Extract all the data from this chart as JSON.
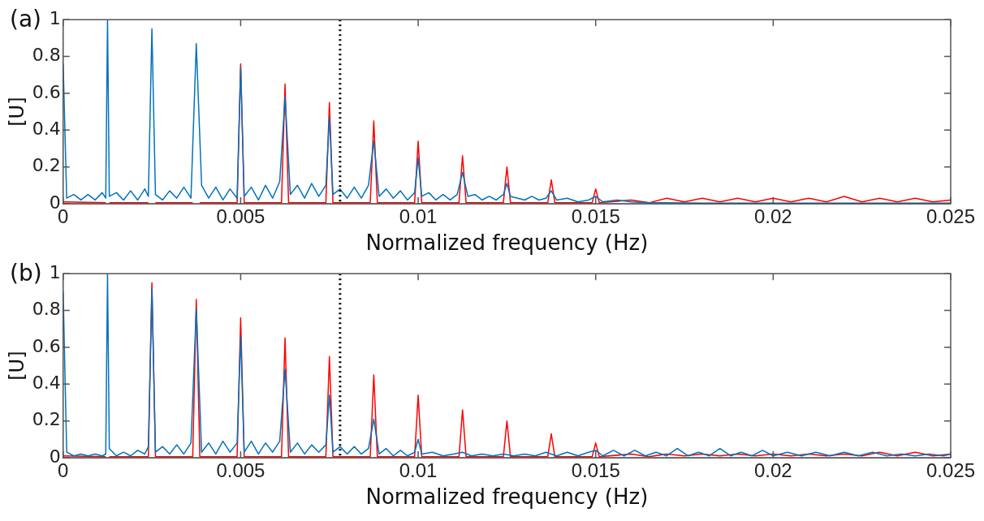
{
  "chart_data": [
    {
      "type": "line",
      "annotations": [
        "(a)"
      ],
      "xlabel": "Normalized frequency (Hz)",
      "ylabel": "[U]",
      "xlim": [
        0,
        0.025
      ],
      "xticks": [
        0,
        0.005,
        0.01,
        0.015,
        0.02,
        0.025
      ],
      "ylim": [
        0,
        1
      ],
      "yticks": [
        0,
        0.2,
        0.4,
        0.6,
        0.8,
        1
      ],
      "grid": false,
      "ref_lines": [
        {
          "axis": "x",
          "value": 0.0078,
          "color": "#000000",
          "line_style": "dotted"
        }
      ],
      "series": [
        {
          "color": "#ff0000",
          "x": [
            0,
            0.0012,
            0.00125,
            0.0013,
            0.0024,
            0.0025,
            0.0026,
            0.00365,
            0.00375,
            0.00385,
            0.0049,
            0.005,
            0.0051,
            0.00615,
            0.00625,
            0.00635,
            0.0074,
            0.0075,
            0.0076,
            0.00865,
            0.00875,
            0.00885,
            0.0099,
            0.01,
            0.0101,
            0.01115,
            0.01125,
            0.01135,
            0.0124,
            0.0125,
            0.0126,
            0.01365,
            0.01375,
            0.01385,
            0.0149,
            0.015,
            0.0151,
            0.016,
            0.0165,
            0.017,
            0.0175,
            0.018,
            0.0185,
            0.019,
            0.0195,
            0.02,
            0.0205,
            0.021,
            0.0215,
            0.022,
            0.0225,
            0.023,
            0.0235,
            0.024,
            0.0245,
            0.025
          ],
          "values": [
            0.01,
            0.005,
            null,
            0.005,
            0.005,
            null,
            0.005,
            0.005,
            null,
            0.005,
            0.005,
            0.76,
            0.005,
            0.005,
            0.65,
            0.005,
            0.005,
            0.55,
            0.005,
            0.005,
            0.45,
            0.005,
            0.005,
            0.34,
            0.005,
            0.005,
            0.26,
            0.005,
            0.005,
            0.2,
            0.005,
            0.005,
            0.13,
            0.005,
            0.005,
            0.08,
            0.005,
            0.02,
            0.005,
            0.03,
            0.01,
            0.03,
            0.01,
            0.03,
            0.01,
            0.03,
            0.01,
            0.03,
            0.01,
            0.04,
            0.01,
            0.03,
            0.01,
            0.03,
            0.01,
            0.02
          ]
        },
        {
          "color": "#0072bd",
          "x": [
            0,
            0.0001,
            0.0003,
            0.0005,
            0.0007,
            0.0009,
            0.0011,
            0.0012,
            0.00125,
            0.0013,
            0.0015,
            0.0017,
            0.0019,
            0.0021,
            0.0023,
            0.0024,
            0.0025,
            0.0026,
            0.0028,
            0.003,
            0.0032,
            0.0034,
            0.0036,
            0.00375,
            0.0039,
            0.0041,
            0.0043,
            0.0045,
            0.0047,
            0.0049,
            0.005,
            0.0051,
            0.0053,
            0.0055,
            0.0057,
            0.0059,
            0.0061,
            0.00625,
            0.0064,
            0.0066,
            0.0068,
            0.007,
            0.0072,
            0.0074,
            0.0075,
            0.0076,
            0.0078,
            0.008,
            0.0082,
            0.0084,
            0.0086,
            0.00875,
            0.0089,
            0.0091,
            0.0093,
            0.0095,
            0.0097,
            0.0099,
            0.01,
            0.0101,
            0.0103,
            0.0105,
            0.0107,
            0.0109,
            0.0111,
            0.01125,
            0.0114,
            0.0116,
            0.0118,
            0.012,
            0.0122,
            0.0124,
            0.0125,
            0.0126,
            0.0128,
            0.013,
            0.0132,
            0.0134,
            0.0136,
            0.01375,
            0.0139,
            0.0142,
            0.0145,
            0.0148,
            0.015,
            0.0152,
            0.0156,
            0.016,
            0.0165,
            0.017,
            0.018,
            0.019,
            0.02,
            0.021,
            0.022,
            0.023,
            0.024,
            0.025
          ],
          "values": [
            0.76,
            0.03,
            0.05,
            0.02,
            0.05,
            0.02,
            0.06,
            0.03,
            1,
            0.04,
            0.06,
            0.02,
            0.07,
            0.02,
            0.08,
            0.04,
            0.95,
            0.05,
            0.02,
            0.07,
            0.03,
            0.09,
            0.03,
            0.87,
            0.1,
            0.03,
            0.09,
            0.02,
            0.08,
            0.03,
            0.74,
            0.04,
            0.09,
            0.02,
            0.1,
            0.03,
            0.12,
            0.58,
            0.05,
            0.1,
            0.03,
            0.11,
            0.04,
            0.1,
            0.47,
            0.05,
            0.08,
            0.03,
            0.09,
            0.03,
            0.1,
            0.34,
            0.04,
            0.08,
            0.03,
            0.07,
            0.02,
            0.06,
            0.25,
            0.04,
            0.06,
            0.02,
            0.05,
            0.02,
            0.05,
            0.17,
            0.04,
            0.05,
            0.02,
            0.04,
            0.02,
            0.05,
            0.11,
            0.04,
            0.03,
            0.02,
            0.04,
            0.02,
            0.03,
            0.07,
            0.02,
            0.03,
            0.01,
            0.02,
            0.04,
            0.01,
            0.02,
            0.01,
            0.005,
            0.005,
            0.003,
            0.003,
            0.003,
            0.003,
            0.003,
            0.003,
            0.003,
            0.003
          ]
        }
      ]
    },
    {
      "type": "line",
      "annotations": [
        "(b)"
      ],
      "xlabel": "Normalized frequency (Hz)",
      "ylabel": "[U]",
      "xlim": [
        0,
        0.025
      ],
      "xticks": [
        0,
        0.005,
        0.01,
        0.015,
        0.02,
        0.025
      ],
      "ylim": [
        0,
        1
      ],
      "yticks": [
        0,
        0.2,
        0.4,
        0.6,
        0.8,
        1
      ],
      "grid": false,
      "ref_lines": [
        {
          "axis": "x",
          "value": 0.0078,
          "color": "#000000",
          "line_style": "dotted"
        }
      ],
      "series": [
        {
          "color": "#ff0000",
          "x": [
            0,
            0.0012,
            0.00125,
            0.0013,
            0.0024,
            0.0025,
            0.0026,
            0.00365,
            0.00375,
            0.00385,
            0.0049,
            0.005,
            0.0051,
            0.00615,
            0.00625,
            0.00635,
            0.0074,
            0.0075,
            0.0076,
            0.00865,
            0.00875,
            0.00885,
            0.0099,
            0.01,
            0.0101,
            0.01115,
            0.01125,
            0.01135,
            0.0124,
            0.0125,
            0.0126,
            0.01365,
            0.01375,
            0.01385,
            0.0149,
            0.015,
            0.0151,
            0.016,
            0.0165,
            0.017,
            0.0175,
            0.018,
            0.0185,
            0.019,
            0.0195,
            0.02,
            0.0205,
            0.021,
            0.0215,
            0.022,
            0.0225,
            0.023,
            0.0235,
            0.024,
            0.0245,
            0.025
          ],
          "values": [
            0.01,
            0.005,
            null,
            0.005,
            0.005,
            0.95,
            0.005,
            0.005,
            0.86,
            0.005,
            0.005,
            0.76,
            0.005,
            0.005,
            0.65,
            0.005,
            0.005,
            0.55,
            0.005,
            0.005,
            0.45,
            0.005,
            0.005,
            0.34,
            0.005,
            0.005,
            0.26,
            0.005,
            0.005,
            0.2,
            0.005,
            0.005,
            0.13,
            0.005,
            0.005,
            0.08,
            0.005,
            0.02,
            0.005,
            0.02,
            0.01,
            0.02,
            0.01,
            0.02,
            0.01,
            0.02,
            0.01,
            0.02,
            0.01,
            0.02,
            0.01,
            0.03,
            0.01,
            0.03,
            0.01,
            0.02
          ]
        },
        {
          "color": "#0072bd",
          "x": [
            0,
            0.0001,
            0.0003,
            0.0005,
            0.0007,
            0.0009,
            0.0011,
            0.0012,
            0.00125,
            0.0013,
            0.0015,
            0.0017,
            0.0019,
            0.0021,
            0.0023,
            0.0024,
            0.0025,
            0.0026,
            0.0028,
            0.003,
            0.0032,
            0.0034,
            0.0036,
            0.00375,
            0.0039,
            0.0041,
            0.0043,
            0.0045,
            0.0047,
            0.0049,
            0.005,
            0.0051,
            0.0053,
            0.0055,
            0.0057,
            0.0059,
            0.0061,
            0.00625,
            0.0064,
            0.0066,
            0.0068,
            0.007,
            0.0072,
            0.0074,
            0.0075,
            0.0076,
            0.0078,
            0.008,
            0.0082,
            0.0084,
            0.0086,
            0.00875,
            0.0089,
            0.0091,
            0.0093,
            0.0095,
            0.0097,
            0.0099,
            0.01,
            0.0101,
            0.0104,
            0.0107,
            0.011,
            0.01125,
            0.0115,
            0.0118,
            0.0121,
            0.0124,
            0.0127,
            0.013,
            0.0133,
            0.0136,
            0.0139,
            0.0142,
            0.0145,
            0.0148,
            0.015,
            0.0152,
            0.0155,
            0.0158,
            0.0161,
            0.0164,
            0.0167,
            0.017,
            0.0173,
            0.0176,
            0.0179,
            0.0182,
            0.0185,
            0.0188,
            0.0191,
            0.0194,
            0.0197,
            0.02,
            0.0204,
            0.0208,
            0.0212,
            0.0216,
            0.022,
            0.0224,
            0.0228,
            0.0232,
            0.0236,
            0.024,
            0.0244,
            0.0248,
            0.025
          ],
          "values": [
            0.9,
            0.03,
            0.01,
            0.02,
            0.01,
            0.02,
            0.01,
            0.02,
            1,
            0.05,
            0.01,
            0.03,
            0.01,
            0.04,
            0.02,
            0.06,
            0.92,
            0.03,
            0.06,
            0.02,
            0.07,
            0.02,
            0.08,
            0.81,
            0.03,
            0.08,
            0.02,
            0.09,
            0.03,
            0.08,
            0.66,
            0.03,
            0.09,
            0.02,
            0.08,
            0.03,
            0.09,
            0.48,
            0.03,
            0.08,
            0.02,
            0.07,
            0.03,
            0.07,
            0.34,
            0.03,
            0.06,
            0.02,
            0.06,
            0.02,
            0.05,
            0.21,
            0.02,
            0.05,
            0.01,
            0.04,
            0.01,
            0.03,
            0.1,
            0.02,
            0.03,
            0.01,
            0.02,
            0.03,
            0.01,
            0.02,
            0.01,
            0.02,
            0.01,
            0.02,
            0.01,
            0.03,
            0.01,
            0.03,
            0.01,
            0.03,
            0.04,
            0.01,
            0.04,
            0.01,
            0.04,
            0.01,
            0.03,
            0.01,
            0.05,
            0.01,
            0.03,
            0.01,
            0.05,
            0.01,
            0.03,
            0.01,
            0.04,
            0.01,
            0.03,
            0.01,
            0.03,
            0.01,
            0.03,
            0.01,
            0.03,
            0.01,
            0.02,
            0.01,
            0.02,
            0.01,
            0.02
          ]
        }
      ]
    }
  ]
}
